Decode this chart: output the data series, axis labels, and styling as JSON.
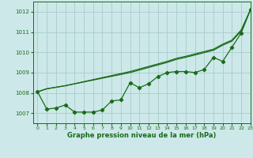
{
  "xlabel": "Graphe pression niveau de la mer (hPa)",
  "xlim": [
    -0.5,
    23
  ],
  "ylim": [
    1006.5,
    1012.5
  ],
  "yticks": [
    1007,
    1008,
    1009,
    1010,
    1011,
    1012
  ],
  "xticks": [
    0,
    1,
    2,
    3,
    4,
    5,
    6,
    7,
    8,
    9,
    10,
    11,
    12,
    13,
    14,
    15,
    16,
    17,
    18,
    19,
    20,
    21,
    22,
    23
  ],
  "bg_color": "#cce8e8",
  "grid_color": "#aacccc",
  "line_color": "#1a6b1a",
  "line1_x": [
    0,
    1,
    2,
    3,
    4,
    5,
    6,
    7,
    8,
    9,
    10,
    11,
    12,
    13,
    14,
    15,
    16,
    17,
    18,
    19,
    20,
    21,
    22,
    23
  ],
  "line1_y": [
    1008.05,
    1007.2,
    1007.25,
    1007.4,
    1007.05,
    1007.05,
    1007.05,
    1007.15,
    1007.6,
    1007.65,
    1008.5,
    1008.25,
    1008.45,
    1008.8,
    1009.0,
    1009.05,
    1009.05,
    1009.0,
    1009.15,
    1009.75,
    1009.55,
    1010.25,
    1010.95,
    1012.1
  ],
  "line2_x": [
    0,
    1,
    3,
    10,
    14,
    15,
    16,
    19,
    20,
    21,
    22,
    23
  ],
  "line2_y": [
    1008.05,
    1008.2,
    1008.35,
    1009.0,
    1009.5,
    1009.65,
    1009.75,
    1010.1,
    1010.35,
    1010.55,
    1011.05,
    1012.1
  ],
  "line3_x": [
    0,
    1,
    3,
    10,
    14,
    15,
    16,
    19,
    20,
    21,
    22,
    23
  ],
  "line3_y": [
    1008.05,
    1008.2,
    1008.35,
    1009.05,
    1009.55,
    1009.7,
    1009.8,
    1010.15,
    1010.4,
    1010.6,
    1011.1,
    1012.1
  ],
  "line_width": 0.9,
  "marker_size": 2.2,
  "tick_fontsize": 5.0,
  "xlabel_fontsize": 6.0
}
